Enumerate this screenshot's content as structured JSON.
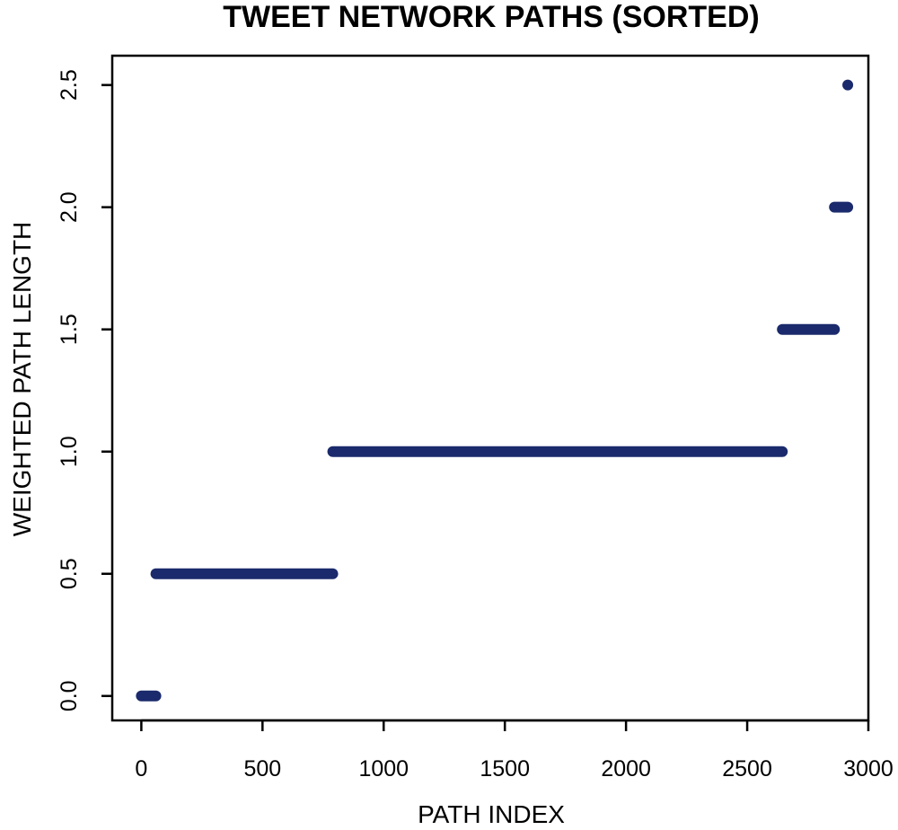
{
  "chart_data": {
    "type": "scatter",
    "title": "TWEET NETWORK PATHS (SORTED)",
    "xlabel": "PATH INDEX",
    "ylabel": "WEIGHTED PATH LENGTH",
    "xlim": [
      -120,
      3000
    ],
    "ylim": [
      -0.1,
      2.62
    ],
    "xticks": [
      0,
      500,
      1000,
      1500,
      2000,
      2500,
      3000
    ],
    "xtick_labels": [
      "0",
      "500",
      "1000",
      "1500",
      "2000",
      "2500",
      "3000"
    ],
    "yticks": [
      0.0,
      0.5,
      1.0,
      1.5,
      2.0,
      2.5
    ],
    "ytick_labels": [
      "0.0",
      "0.5",
      "1.0",
      "1.5",
      "2.0",
      "2.5"
    ],
    "grid": false,
    "legend": "none",
    "point_color": "#1a2a6c",
    "segments": [
      {
        "y": 0.0,
        "x_start": 0,
        "x_end": 60
      },
      {
        "y": 0.5,
        "x_start": 60,
        "x_end": 790
      },
      {
        "y": 1.0,
        "x_start": 790,
        "x_end": 2645
      },
      {
        "y": 1.5,
        "x_start": 2645,
        "x_end": 2860
      },
      {
        "y": 2.0,
        "x_start": 2860,
        "x_end": 2915
      },
      {
        "y": 2.5,
        "x_start": 2915,
        "x_end": 2915
      }
    ]
  }
}
